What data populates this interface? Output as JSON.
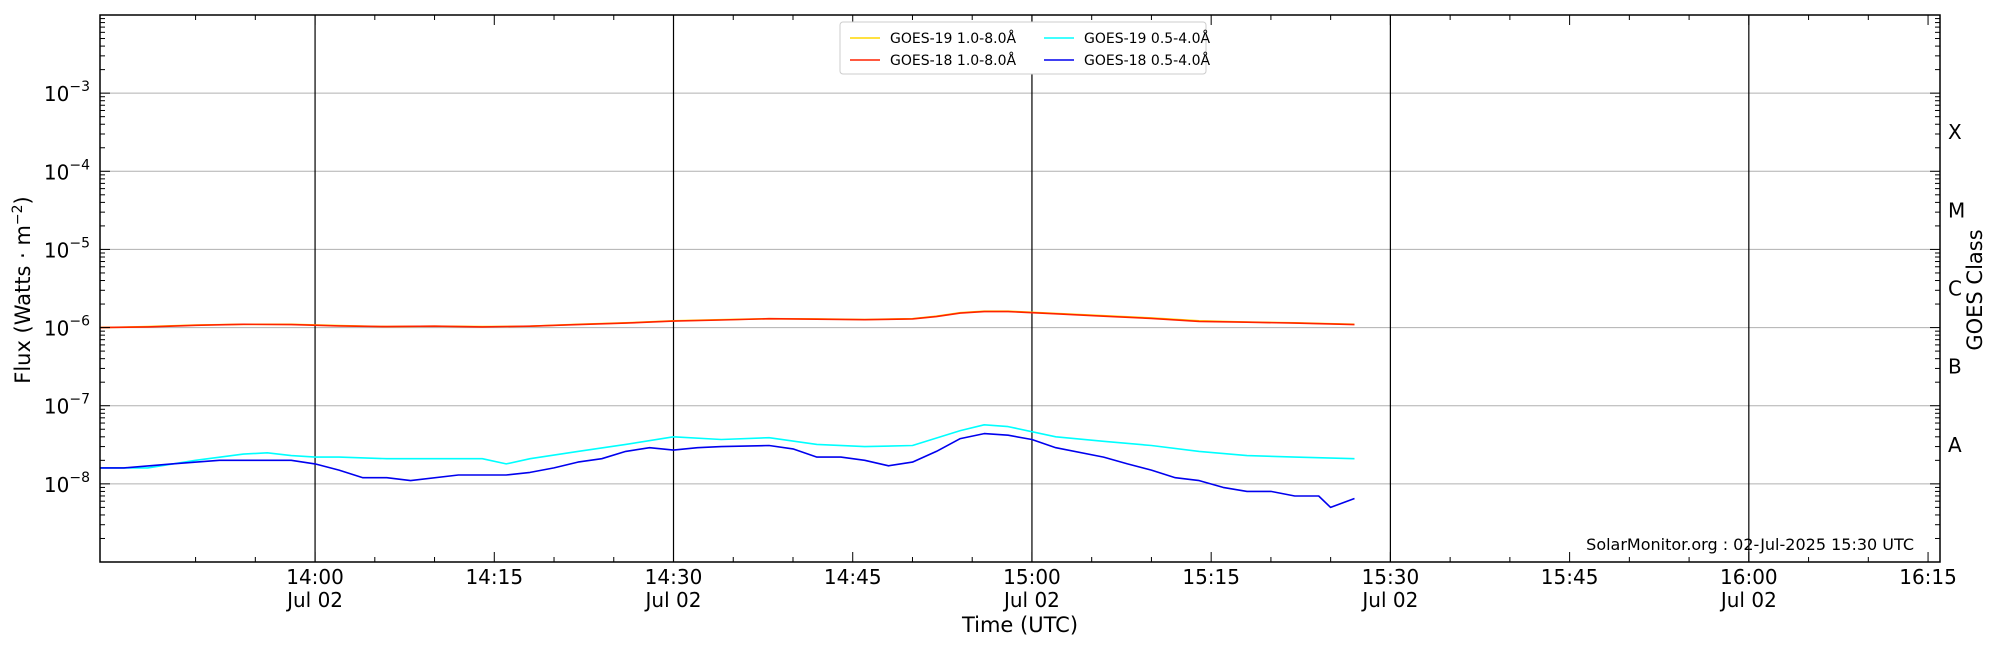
{
  "chart_data": {
    "type": "line",
    "ylabel_base": "Flux (Watts · m",
    "ylabel_exp": "−2",
    "ylabel_close": ")",
    "xlabel": "Time (UTC)",
    "right_axis_label": "GOES Class",
    "watermark": "SolarMonitor.org : 02-Jul-2025 15:30 UTC",
    "y_scale": "log",
    "ylim_exp": [
      -9,
      -2
    ],
    "xlim": [
      "13:42",
      "16:16"
    ],
    "x_ticks": [
      {
        "time": "14:00",
        "label": "14:00",
        "sub": "Jul 02",
        "major": true
      },
      {
        "time": "14:15",
        "label": "14:15",
        "sub": "",
        "major": false
      },
      {
        "time": "14:30",
        "label": "14:30",
        "sub": "Jul 02",
        "major": true
      },
      {
        "time": "14:45",
        "label": "14:45",
        "sub": "",
        "major": false
      },
      {
        "time": "15:00",
        "label": "15:00",
        "sub": "Jul 02",
        "major": true
      },
      {
        "time": "15:15",
        "label": "15:15",
        "sub": "",
        "major": false
      },
      {
        "time": "15:30",
        "label": "15:30",
        "sub": "Jul 02",
        "major": true
      },
      {
        "time": "15:45",
        "label": "15:45",
        "sub": "",
        "major": false
      },
      {
        "time": "16:00",
        "label": "16:00",
        "sub": "Jul 02",
        "major": true
      },
      {
        "time": "16:15",
        "label": "16:15",
        "sub": "",
        "major": false
      }
    ],
    "y_ticks": [
      {
        "exp": -8,
        "base": "10",
        "sup": "−8"
      },
      {
        "exp": -7,
        "base": "10",
        "sup": "−7"
      },
      {
        "exp": -6,
        "base": "10",
        "sup": "−6"
      },
      {
        "exp": -5,
        "base": "10",
        "sup": "−5"
      },
      {
        "exp": -4,
        "base": "10",
        "sup": "−4"
      },
      {
        "exp": -3,
        "base": "10",
        "sup": "−3"
      }
    ],
    "goes_classes": [
      {
        "label": "A",
        "exp": -7.5
      },
      {
        "label": "B",
        "exp": -6.5
      },
      {
        "label": "C",
        "exp": -5.5
      },
      {
        "label": "M",
        "exp": -4.5
      },
      {
        "label": "X",
        "exp": -3.5
      }
    ],
    "legend": [
      {
        "name": "GOES-19 1.0-8.0Å",
        "color": "#ffd700"
      },
      {
        "name": "GOES-18 1.0-8.0Å",
        "color": "#ff2200"
      },
      {
        "name": "GOES-19 0.5-4.0Å",
        "color": "#00ffff"
      },
      {
        "name": "GOES-18 0.5-4.0Å",
        "color": "#0000ee"
      }
    ],
    "series": [
      {
        "name": "GOES-19 1.0-8.0Å",
        "color": "#ffd700",
        "x": [
          "13:42",
          "13:46",
          "13:50",
          "13:54",
          "13:58",
          "14:02",
          "14:06",
          "14:10",
          "14:14",
          "14:18",
          "14:22",
          "14:26",
          "14:30",
          "14:34",
          "14:38",
          "14:42",
          "14:46",
          "14:50",
          "14:52",
          "14:54",
          "14:56",
          "14:58",
          "15:02",
          "15:06",
          "15:10",
          "15:14",
          "15:18",
          "15:22",
          "15:27"
        ],
        "y": [
          1e-06,
          1.03e-06,
          1.08e-06,
          1.1e-06,
          1.1e-06,
          1.06e-06,
          1.03e-06,
          1.04e-06,
          1.03e-06,
          1.04e-06,
          1.1e-06,
          1.15e-06,
          1.22e-06,
          1.26e-06,
          1.3e-06,
          1.29e-06,
          1.27e-06,
          1.3e-06,
          1.4e-06,
          1.55e-06,
          1.62e-06,
          1.62e-06,
          1.52e-06,
          1.42e-06,
          1.33e-06,
          1.22e-06,
          1.18e-06,
          1.15e-06,
          1.1e-06
        ]
      },
      {
        "name": "GOES-18 1.0-8.0Å",
        "color": "#ff2200",
        "x": [
          "13:42",
          "13:46",
          "13:50",
          "13:54",
          "13:58",
          "14:02",
          "14:06",
          "14:10",
          "14:14",
          "14:18",
          "14:22",
          "14:26",
          "14:30",
          "14:34",
          "14:38",
          "14:42",
          "14:46",
          "14:50",
          "14:52",
          "14:54",
          "14:56",
          "14:58",
          "15:02",
          "15:06",
          "15:10",
          "15:14",
          "15:18",
          "15:22",
          "15:27"
        ],
        "y": [
          1e-06,
          1.02e-06,
          1.07e-06,
          1.1e-06,
          1.09e-06,
          1.05e-06,
          1.03e-06,
          1.04e-06,
          1.02e-06,
          1.04e-06,
          1.09e-06,
          1.14e-06,
          1.21e-06,
          1.25e-06,
          1.3e-06,
          1.28e-06,
          1.26e-06,
          1.29e-06,
          1.38e-06,
          1.53e-06,
          1.6e-06,
          1.6e-06,
          1.5e-06,
          1.4e-06,
          1.31e-06,
          1.2e-06,
          1.17e-06,
          1.14e-06,
          1.09e-06
        ]
      },
      {
        "name": "GOES-19 0.5-4.0Å",
        "color": "#00ffff",
        "x": [
          "13:42",
          "13:46",
          "13:50",
          "13:54",
          "13:56",
          "13:58",
          "14:00",
          "14:02",
          "14:06",
          "14:10",
          "14:14",
          "14:16",
          "14:18",
          "14:22",
          "14:26",
          "14:30",
          "14:34",
          "14:38",
          "14:42",
          "14:46",
          "14:50",
          "14:54",
          "14:56",
          "14:58",
          "15:02",
          "15:06",
          "15:10",
          "15:14",
          "15:18",
          "15:22",
          "15:27"
        ],
        "y": [
          1.6e-08,
          1.6e-08,
          2e-08,
          2.4e-08,
          2.5e-08,
          2.3e-08,
          2.2e-08,
          2.2e-08,
          2.1e-08,
          2.1e-08,
          2.1e-08,
          1.8e-08,
          2.1e-08,
          2.6e-08,
          3.2e-08,
          4e-08,
          3.7e-08,
          3.9e-08,
          3.2e-08,
          3e-08,
          3.1e-08,
          4.8e-08,
          5.7e-08,
          5.4e-08,
          4e-08,
          3.5e-08,
          3.1e-08,
          2.6e-08,
          2.3e-08,
          2.2e-08,
          2.1e-08
        ]
      },
      {
        "name": "GOES-18 0.5-4.0Å",
        "color": "#0000ee",
        "x": [
          "13:42",
          "13:44",
          "13:48",
          "13:52",
          "13:54",
          "13:58",
          "14:00",
          "14:02",
          "14:04",
          "14:06",
          "14:08",
          "14:12",
          "14:16",
          "14:18",
          "14:20",
          "14:22",
          "14:24",
          "14:26",
          "14:28",
          "14:30",
          "14:32",
          "14:34",
          "14:38",
          "14:40",
          "14:42",
          "14:44",
          "14:46",
          "14:48",
          "14:50",
          "14:52",
          "14:54",
          "14:56",
          "14:58",
          "15:00",
          "15:02",
          "15:06",
          "15:08",
          "15:10",
          "15:12",
          "15:14",
          "15:16",
          "15:18",
          "15:20",
          "15:22",
          "15:24",
          "15:25",
          "15:27"
        ],
        "y": [
          1.6e-08,
          1.6e-08,
          1.8e-08,
          2e-08,
          2e-08,
          2e-08,
          1.8e-08,
          1.5e-08,
          1.2e-08,
          1.2e-08,
          1.1e-08,
          1.3e-08,
          1.3e-08,
          1.4e-08,
          1.6e-08,
          1.9e-08,
          2.1e-08,
          2.6e-08,
          2.9e-08,
          2.7e-08,
          2.9e-08,
          3e-08,
          3.1e-08,
          2.8e-08,
          2.2e-08,
          2.2e-08,
          2e-08,
          1.7e-08,
          1.9e-08,
          2.6e-08,
          3.8e-08,
          4.4e-08,
          4.2e-08,
          3.7e-08,
          2.9e-08,
          2.2e-08,
          1.8e-08,
          1.5e-08,
          1.2e-08,
          1.1e-08,
          9e-09,
          8e-09,
          8e-09,
          7e-09,
          7e-09,
          5e-09,
          6.5e-09
        ]
      }
    ]
  }
}
